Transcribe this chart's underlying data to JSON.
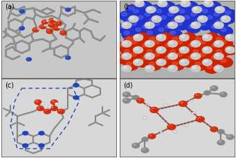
{
  "figure_width": 3.41,
  "figure_height": 2.3,
  "dpi": 100,
  "background_color": "#ffffff",
  "border_color": "#555555",
  "border_linewidth": 0.6,
  "labels": [
    "(a)",
    "(b)",
    "(c)",
    "(d)"
  ],
  "label_fontsize": 7.0,
  "panel_a_bg": "#d8d8d8",
  "panel_b_bg": "#cccccc",
  "panel_c_bg": "#e8e8e8",
  "panel_d_bg": "#e8e8e8",
  "gray_stick": "#888888",
  "blue_atom": "#2244bb",
  "red_atom": "#cc2200",
  "white_atom": "#e8e8e8",
  "red_dotted": "#cc1100",
  "blue_dotted": "#2244bb",
  "panel_b_blue": "#2233cc",
  "panel_b_red": "#cc2200",
  "panel_b_white": "#cccccc"
}
